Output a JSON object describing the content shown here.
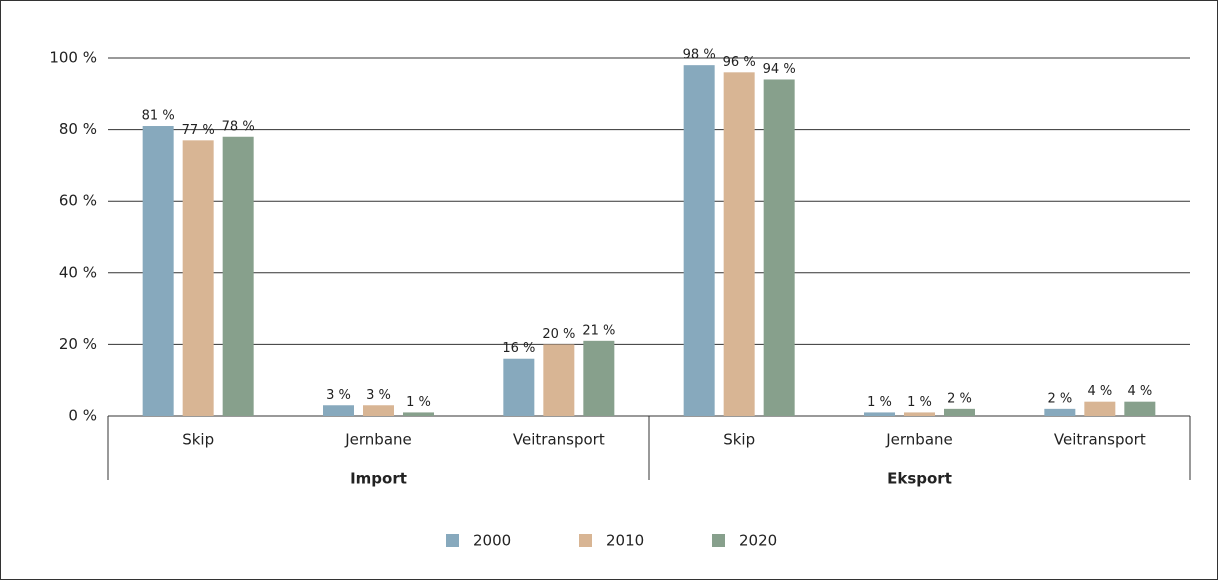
{
  "chart_data": {
    "type": "bar",
    "categories": [
      "Skip",
      "Jernbane",
      "Veitransport",
      "Skip",
      "Jernbane",
      "Veitransport"
    ],
    "groups": [
      "Import",
      "Eksport"
    ],
    "series": [
      {
        "name": "2000",
        "color": "#87a9bd",
        "values": [
          81,
          3,
          16,
          98,
          1,
          2
        ],
        "value_labels": [
          "81 %",
          "3 %",
          "16 %",
          "98 %",
          "1 %",
          "2 %"
        ]
      },
      {
        "name": "2010",
        "color": "#d8b594",
        "values": [
          77,
          3,
          20,
          96,
          1,
          4
        ],
        "value_labels": [
          "77 %",
          "3 %",
          "20 %",
          "96 %",
          "1 %",
          "4 %"
        ]
      },
      {
        "name": "2020",
        "color": "#87a08c",
        "values": [
          78,
          1,
          21,
          94,
          2,
          4
        ],
        "value_labels": [
          "78 %",
          "1 %",
          "21 %",
          "94 %",
          "2 %",
          "4 %"
        ]
      }
    ],
    "ylim": [
      0,
      100
    ],
    "yticks": [
      {
        "value": 0,
        "label": "0 %"
      },
      {
        "value": 20,
        "label": "20 %"
      },
      {
        "value": 40,
        "label": "40 %"
      },
      {
        "value": 60,
        "label": "60 %"
      },
      {
        "value": 80,
        "label": "80 %"
      },
      {
        "value": 100,
        "label": "100 %"
      }
    ],
    "grid": true,
    "legend": "bottom"
  }
}
